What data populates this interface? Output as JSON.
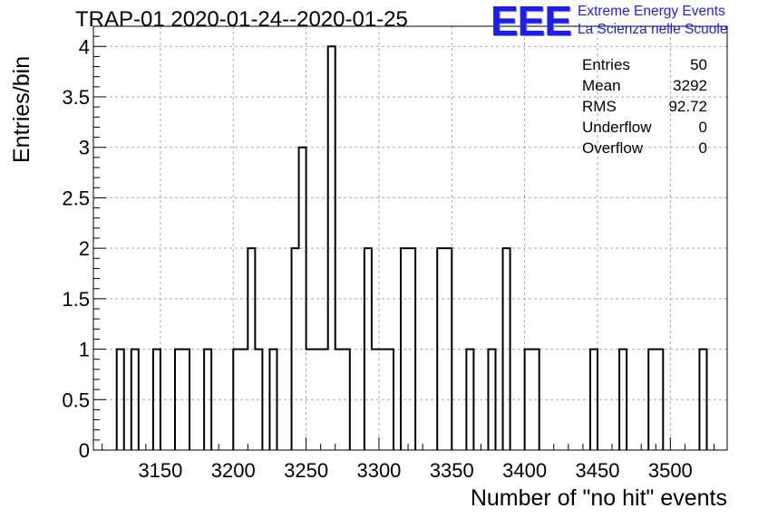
{
  "title": "TRAP-01 2020-01-24--2020-01-25",
  "logo": {
    "mark": "EEE",
    "line1": "Extreme Energy Events",
    "line2": "La Scienza nelle Scuole",
    "color": "#1e1ee6"
  },
  "stats": [
    {
      "label": "Entries",
      "value": "50"
    },
    {
      "label": "Mean",
      "value": "3292"
    },
    {
      "label": "RMS",
      "value": "92.72"
    },
    {
      "label": "Underflow",
      "value": "0"
    },
    {
      "label": "Overflow",
      "value": "0"
    }
  ],
  "chart_data": {
    "type": "bar",
    "subtype": "histogram-step",
    "title": "TRAP-01 2020-01-24--2020-01-25",
    "xlabel": "Number of \"no hit\" events",
    "ylabel": "Entries/bin",
    "xlim": [
      3104,
      3539
    ],
    "ylim": [
      0,
      4.2
    ],
    "bin_width": 5,
    "grid": true,
    "x_ticks": [
      3150,
      3200,
      3250,
      3300,
      3350,
      3400,
      3450,
      3500
    ],
    "x_tick_labels": [
      "3150",
      "3200",
      "3250",
      "3300",
      "3350",
      "3400",
      "3450",
      "3500"
    ],
    "y_ticks": [
      0,
      0.5,
      1,
      1.5,
      2,
      2.5,
      3,
      3.5,
      4
    ],
    "y_tick_labels": [
      "0",
      "0.5",
      "1",
      "1.5",
      "2",
      "2.5",
      "3",
      "3.5",
      "4"
    ],
    "bins": [
      {
        "x": 3120,
        "count": 1
      },
      {
        "x": 3130,
        "count": 1
      },
      {
        "x": 3145,
        "count": 1
      },
      {
        "x": 3160,
        "count": 1
      },
      {
        "x": 3165,
        "count": 1
      },
      {
        "x": 3180,
        "count": 1
      },
      {
        "x": 3200,
        "count": 1
      },
      {
        "x": 3205,
        "count": 1
      },
      {
        "x": 3210,
        "count": 2
      },
      {
        "x": 3215,
        "count": 1
      },
      {
        "x": 3225,
        "count": 1
      },
      {
        "x": 3240,
        "count": 2
      },
      {
        "x": 3245,
        "count": 3
      },
      {
        "x": 3250,
        "count": 1
      },
      {
        "x": 3255,
        "count": 1
      },
      {
        "x": 3260,
        "count": 1
      },
      {
        "x": 3265,
        "count": 4
      },
      {
        "x": 3270,
        "count": 1
      },
      {
        "x": 3275,
        "count": 1
      },
      {
        "x": 3290,
        "count": 2
      },
      {
        "x": 3295,
        "count": 1
      },
      {
        "x": 3300,
        "count": 1
      },
      {
        "x": 3305,
        "count": 1
      },
      {
        "x": 3315,
        "count": 2
      },
      {
        "x": 3320,
        "count": 2
      },
      {
        "x": 3340,
        "count": 2
      },
      {
        "x": 3345,
        "count": 2
      },
      {
        "x": 3360,
        "count": 1
      },
      {
        "x": 3375,
        "count": 1
      },
      {
        "x": 3385,
        "count": 2
      },
      {
        "x": 3400,
        "count": 1
      },
      {
        "x": 3405,
        "count": 1
      },
      {
        "x": 3445,
        "count": 1
      },
      {
        "x": 3465,
        "count": 1
      },
      {
        "x": 3485,
        "count": 1
      },
      {
        "x": 3490,
        "count": 1
      },
      {
        "x": 3520,
        "count": 1
      }
    ]
  }
}
